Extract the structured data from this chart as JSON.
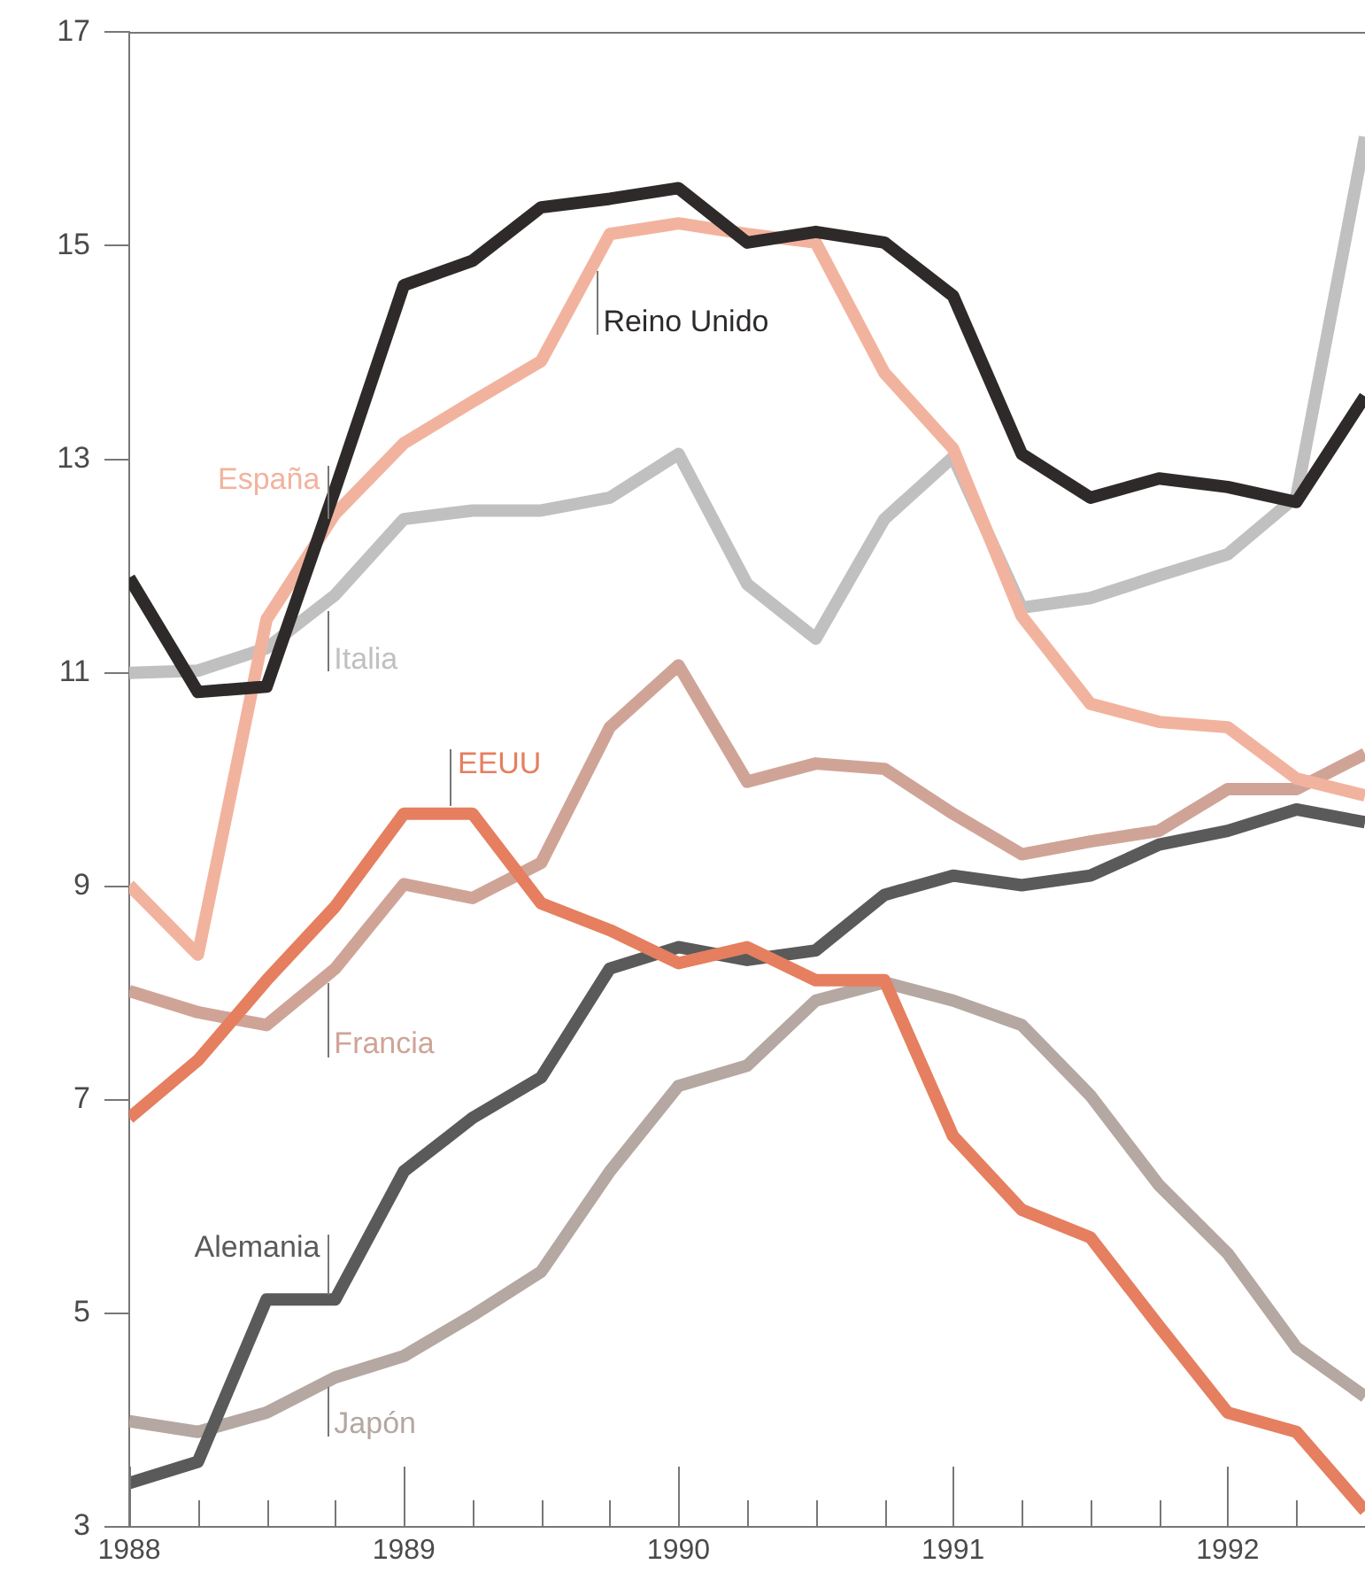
{
  "chart_data": {
    "type": "line",
    "x": [
      1988,
      1988.25,
      1988.5,
      1988.75,
      1989,
      1989.25,
      1989.5,
      1989.75,
      1990,
      1990.25,
      1990.5,
      1990.75,
      1991,
      1991.25,
      1991.5,
      1991.75,
      1992,
      1992.25,
      1992.5
    ],
    "series": [
      {
        "name": "Reino Unido",
        "color": "#2e2a2a",
        "values": [
          11.89,
          10.82,
          10.87,
          12.72,
          14.63,
          14.86,
          15.36,
          15.44,
          15.54,
          15.03,
          15.13,
          15.03,
          14.53,
          13.05,
          12.64,
          12.82,
          12.74,
          12.6,
          13.59
        ]
      },
      {
        "name": "España",
        "color": "#f2b39e",
        "values": [
          9.01,
          8.36,
          11.5,
          12.49,
          13.15,
          13.54,
          13.92,
          15.11,
          15.21,
          15.11,
          15.03,
          13.81,
          13.1,
          11.53,
          10.71,
          10.54,
          10.49,
          10.01,
          9.85
        ]
      },
      {
        "name": "Italia",
        "color": "#bfc0bf",
        "values": [
          11.0,
          11.02,
          11.23,
          11.73,
          12.44,
          12.52,
          12.52,
          12.64,
          13.05,
          11.83,
          11.32,
          12.44,
          13.02,
          11.61,
          11.7,
          11.91,
          12.11,
          12.65,
          16.02
        ]
      },
      {
        "name": "EEUU",
        "color": "#e57f5f",
        "values": [
          6.83,
          7.37,
          8.12,
          8.81,
          9.68,
          9.68,
          8.84,
          8.59,
          8.28,
          8.43,
          8.12,
          8.12,
          6.66,
          5.97,
          5.71,
          4.88,
          4.07,
          3.89,
          3.15
        ]
      },
      {
        "name": "Francia",
        "color": "#cfa497",
        "values": [
          8.02,
          7.82,
          7.7,
          8.23,
          9.02,
          8.89,
          9.22,
          10.49,
          11.07,
          9.98,
          10.15,
          10.1,
          9.68,
          9.3,
          9.42,
          9.52,
          9.91,
          9.91,
          10.24
        ]
      },
      {
        "name": "Alemania",
        "color": "#5a5a5a",
        "values": [
          3.41,
          3.61,
          5.13,
          5.13,
          6.33,
          6.83,
          7.21,
          8.23,
          8.43,
          8.31,
          8.4,
          8.92,
          9.1,
          9.01,
          9.1,
          9.39,
          9.52,
          9.72,
          9.6
        ]
      },
      {
        "name": "Japón",
        "color": "#b5a7a1",
        "values": [
          3.99,
          3.89,
          4.07,
          4.4,
          4.6,
          4.98,
          5.39,
          6.33,
          7.13,
          7.32,
          7.93,
          8.1,
          7.93,
          7.7,
          7.04,
          6.2,
          5.56,
          4.68,
          4.22
        ]
      }
    ],
    "xlim": [
      1988,
      1992.5
    ],
    "xticks": [
      1988,
      {
        "value": 1988.25,
        "label": null
      },
      {
        "value": 1988.5,
        "label": null
      },
      {
        "value": 1988.75,
        "label": null
      },
      1989,
      {
        "value": 1989.25,
        "label": null
      },
      {
        "value": 1989.5,
        "label": null
      },
      {
        "value": 1989.75,
        "label": null
      },
      1990,
      {
        "value": 1990.25,
        "label": null
      },
      {
        "value": 1990.5,
        "label": null
      },
      {
        "value": 1990.75,
        "label": null
      },
      1991,
      {
        "value": 1991.25,
        "label": null
      },
      {
        "value": 1991.5,
        "label": null
      },
      {
        "value": 1991.75,
        "label": null
      },
      1992,
      {
        "value": 1992.25,
        "label": null
      }
    ],
    "ylim": [
      3,
      17
    ],
    "yticks": [
      3,
      5,
      7,
      9,
      11,
      13,
      15,
      17
    ],
    "grid": false,
    "legend": false,
    "line_style": "solid"
  }
}
